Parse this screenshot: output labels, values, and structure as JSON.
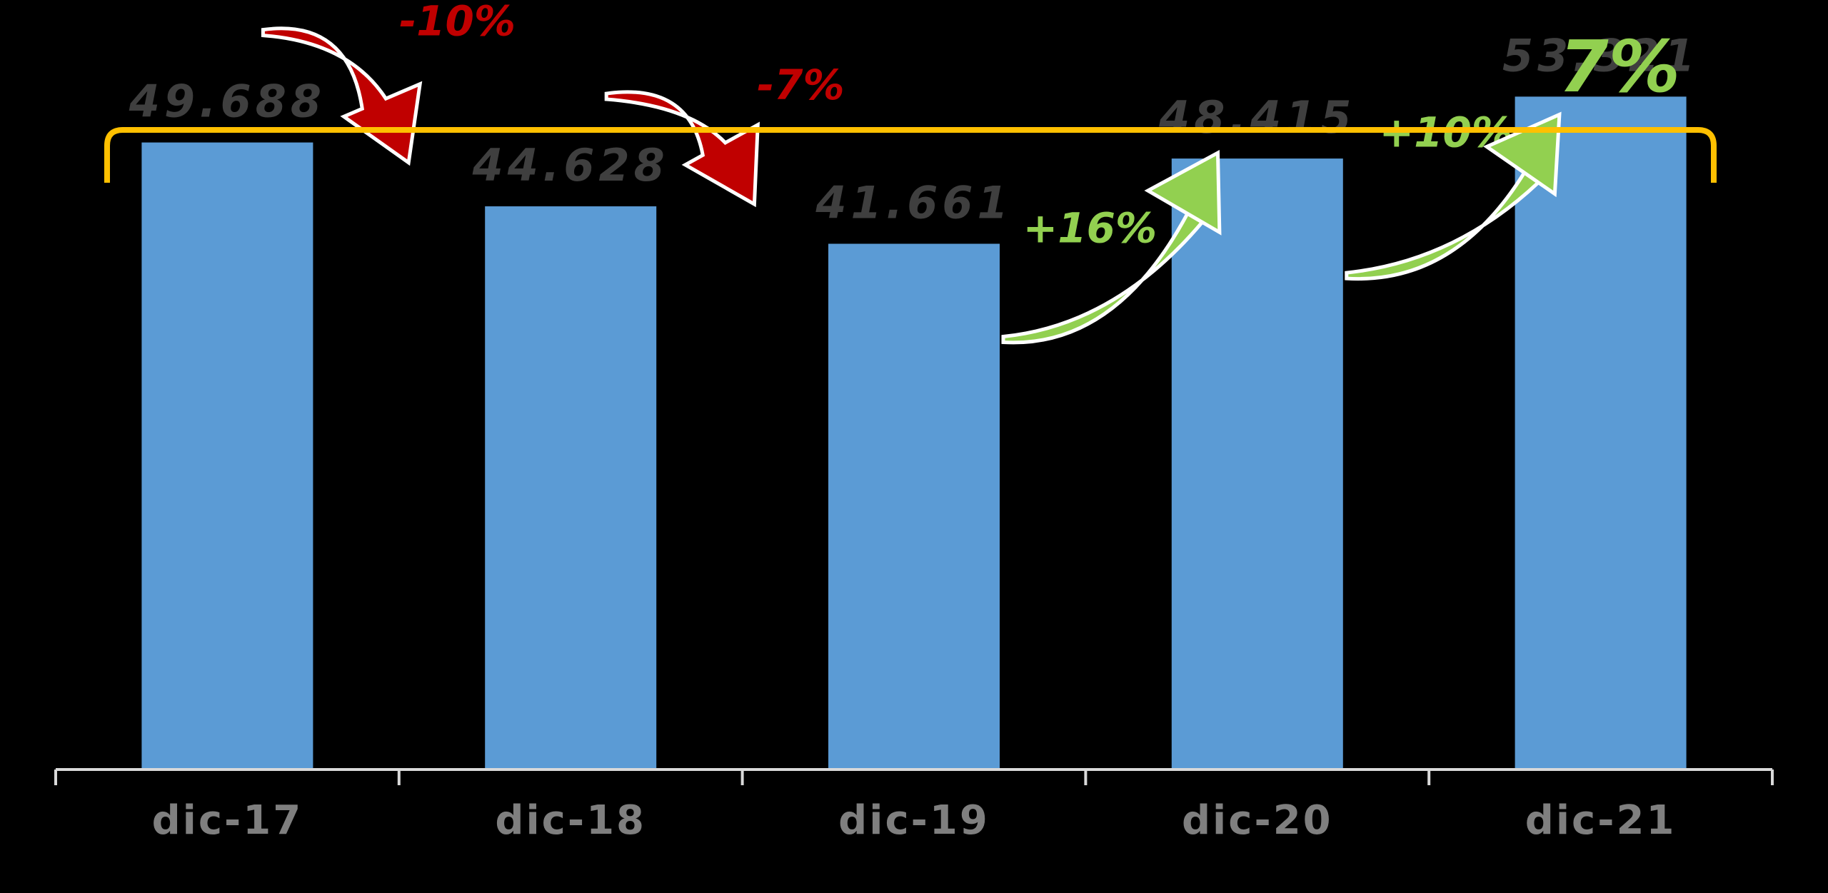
{
  "chart_data": {
    "type": "bar",
    "title": "",
    "xlabel": "",
    "ylabel": "",
    "categories": [
      "dic-17",
      "dic-18",
      "dic-19",
      "dic-20",
      "dic-21"
    ],
    "values": [
      49688,
      44628,
      41661,
      48415,
      53321
    ],
    "value_labels": [
      "49.688",
      "44.628",
      "41.661",
      "48.415",
      "53.321"
    ],
    "ylim": [
      0,
      56000
    ],
    "grid": false,
    "legend": "none",
    "changes": [
      {
        "from": 0,
        "to": 1,
        "label": "-10%",
        "direction": "down"
      },
      {
        "from": 1,
        "to": 2,
        "label": "-7%",
        "direction": "down"
      },
      {
        "from": 2,
        "to": 3,
        "label": "+16%",
        "direction": "up"
      },
      {
        "from": 3,
        "to": 4,
        "label": "+10%",
        "direction": "up"
      }
    ],
    "total_change": {
      "label": "7%",
      "from": 0,
      "to": 4
    }
  },
  "colors": {
    "background": "#000000",
    "bar": "#5b9bd5",
    "axis": "#d9d9d9",
    "value_text": "#3f3f3f",
    "tick_text": "#7f7f7f",
    "down": "#c00000",
    "up": "#92d050",
    "bracket": "#ffc000"
  }
}
